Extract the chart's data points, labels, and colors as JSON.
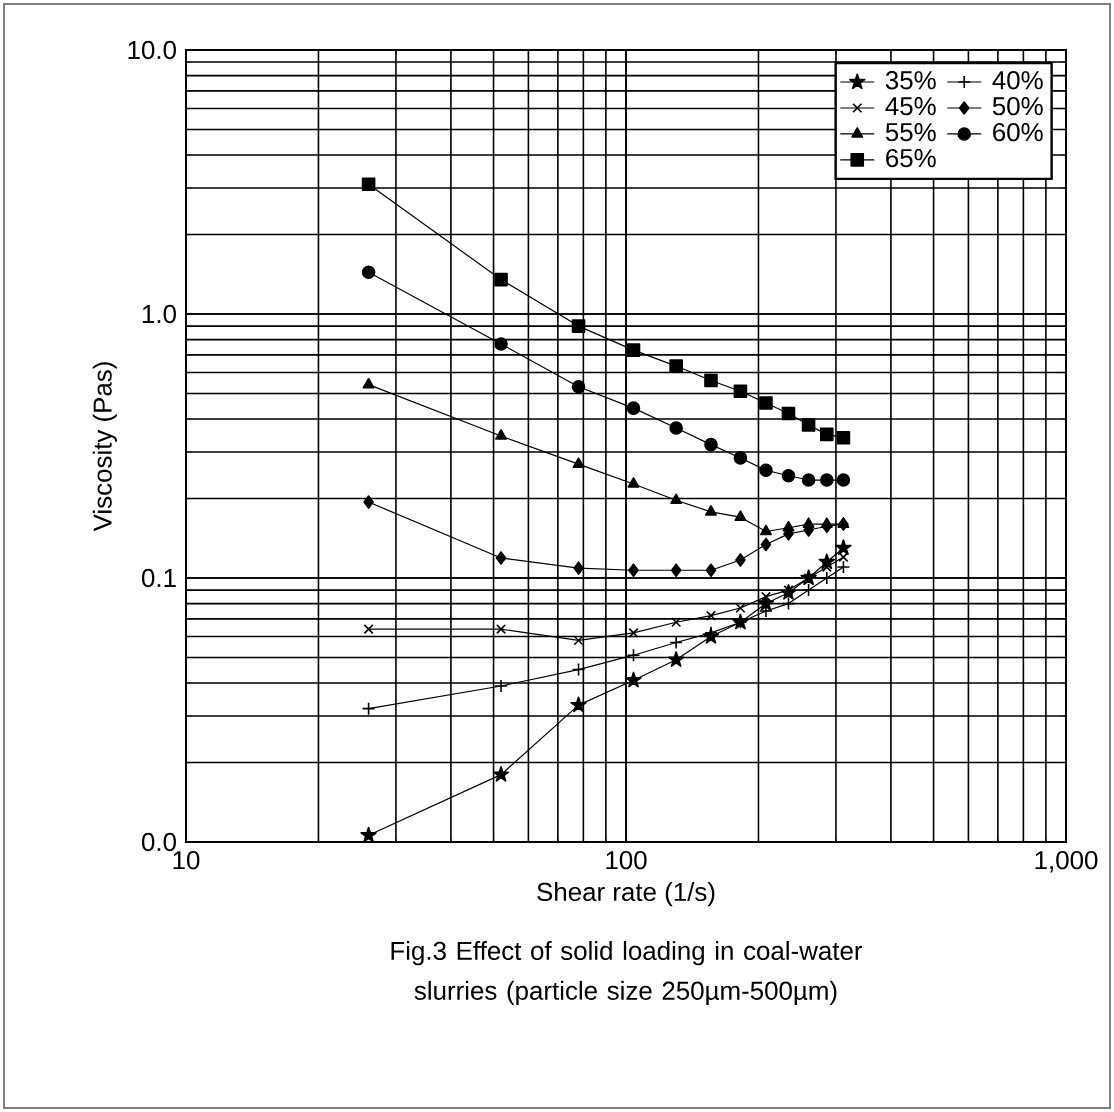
{
  "chart_data": {
    "type": "line",
    "xlabel": "Shear rate (1/s)",
    "ylabel": "Viscosity (Pas)",
    "annotations": [
      "Fig.3 Effect of solid loading in coal-water slurries (particle size 250µm-500µm)"
    ],
    "log": "xy",
    "grid": true,
    "legend": "top right",
    "xlim": [
      10,
      1000
    ],
    "xticks": [
      10,
      100,
      {
        "value": 1000,
        "label": "1,000"
      }
    ],
    "ylim": [
      0.01,
      10
    ],
    "yticks": [
      {
        "value": 0.01,
        "label": "0.0"
      },
      0.1,
      {
        "value": 1,
        "label": "1.0"
      },
      {
        "value": 10,
        "label": "10.0"
      }
    ],
    "x": [
      26,
      52,
      78,
      104,
      130,
      156,
      182,
      208,
      234,
      260,
      286,
      312
    ],
    "series": [
      {
        "name": "35%",
        "color": "#000000",
        "marker": "star",
        "values": [
          0.0106,
          0.018,
          0.033,
          0.041,
          0.049,
          0.06,
          0.068,
          0.08,
          0.088,
          0.1,
          0.115,
          0.13
        ]
      },
      {
        "name": "40%",
        "color": "#000000",
        "marker": "plus",
        "values": [
          0.032,
          0.039,
          0.045,
          0.051,
          0.057,
          0.062,
          0.068,
          0.075,
          0.08,
          0.09,
          0.1,
          0.11
        ]
      },
      {
        "name": "45%",
        "color": "#000000",
        "marker": "cross",
        "values": [
          0.064,
          0.064,
          0.058,
          0.062,
          0.068,
          0.072,
          0.077,
          0.085,
          0.09,
          0.1,
          0.11,
          0.12
        ]
      },
      {
        "name": "50%",
        "color": "#000000",
        "marker": "diamond",
        "values": [
          0.194,
          0.119,
          0.109,
          0.107,
          0.107,
          0.107,
          0.117,
          0.134,
          0.147,
          0.152,
          0.157,
          0.16
        ]
      },
      {
        "name": "55%",
        "color": "#000000",
        "marker": "triangle",
        "values": [
          0.54,
          0.345,
          0.27,
          0.227,
          0.197,
          0.178,
          0.17,
          0.15,
          0.155,
          0.16,
          0.16,
          0.16
        ]
      },
      {
        "name": "60%",
        "color": "#000000",
        "marker": "circle",
        "values": [
          1.44,
          0.77,
          0.53,
          0.44,
          0.37,
          0.32,
          0.285,
          0.256,
          0.244,
          0.235,
          0.235,
          0.235
        ]
      },
      {
        "name": "65%",
        "color": "#000000",
        "marker": "square",
        "values": [
          3.1,
          1.35,
          0.9,
          0.73,
          0.635,
          0.56,
          0.51,
          0.46,
          0.42,
          0.38,
          0.35,
          0.34
        ]
      }
    ]
  }
}
